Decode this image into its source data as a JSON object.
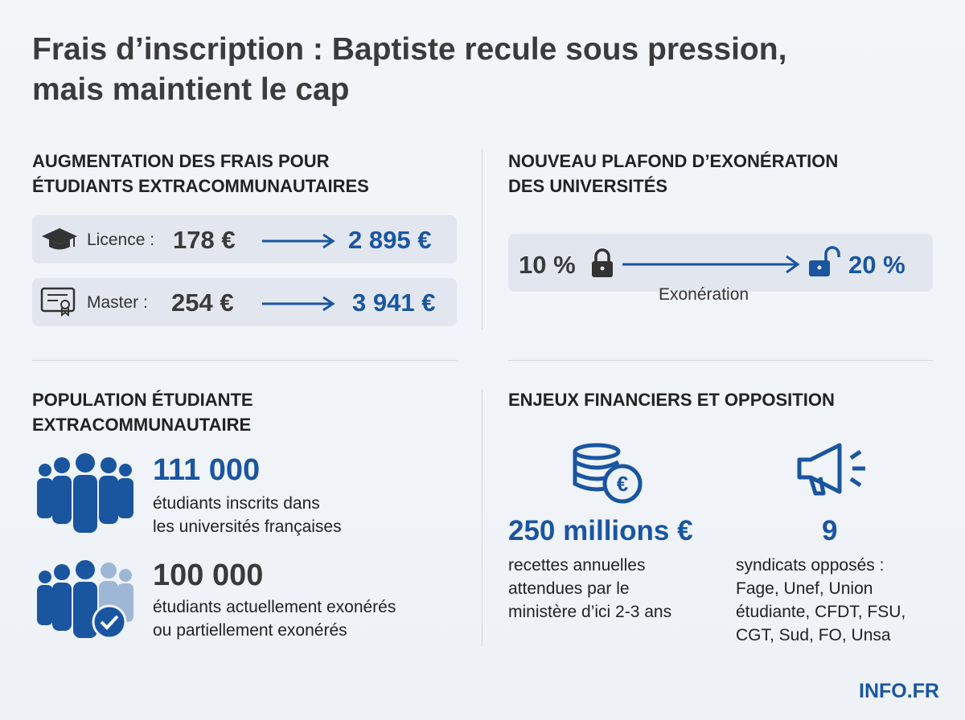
{
  "header": {
    "title_lines": [
      "Frais d’inscription : Baptiste recule sous pression,",
      "mais maintient le cap"
    ]
  },
  "fees": {
    "title_lines": [
      "AUGMENTATION DES FRAIS POUR",
      "ÉTUDIANTS EXTRACOMMUNAUTAIRES"
    ],
    "rows": [
      {
        "label": "Licence :",
        "from": "178 €",
        "to": "2 895 €"
      },
      {
        "label": "Master :",
        "from": "254 €",
        "to": "3 941 €"
      }
    ]
  },
  "ceiling": {
    "title_lines": [
      "NOUVEAU PLAFOND D’EXONÉRATION",
      "DES UNIVERSITÉS"
    ],
    "from": "10 %",
    "to": "20 %",
    "caption": "Exonération"
  },
  "population": {
    "title_lines": [
      "POPULATION ÉTUDIANTE",
      "EXTRACOMMUNAUTAIRE"
    ],
    "stats": [
      {
        "value": "111 000",
        "lines": [
          "étudiants inscrits dans",
          "les universités françaises"
        ]
      },
      {
        "value": "100 000",
        "lines": [
          "étudiants actuellement exonérés",
          "ou partiellement exonérés"
        ]
      }
    ]
  },
  "stakes": {
    "title": "ENJEUX FINANCIERS ET OPPOSITION",
    "items": [
      {
        "value": "250 millions €",
        "lines": [
          "recettes annuelles",
          "attendues par le",
          "ministère d’ici 2-3 ans"
        ]
      },
      {
        "value": "9",
        "lines": [
          "syndicats opposés :",
          "Fage, Unef, Union",
          "étudiante, CFDT, FSU,",
          "CGT, Sud, FO, Unsa"
        ]
      }
    ]
  },
  "footer": {
    "brand": "INFO.FR"
  }
}
